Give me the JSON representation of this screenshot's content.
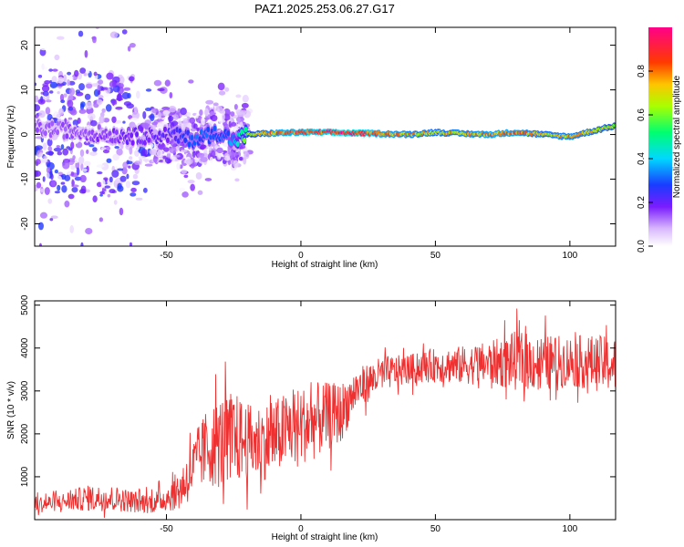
{
  "title": "PAZ1.2025.253.06.27.G17",
  "chart_data": [
    {
      "type": "heatmap",
      "title": "PAZ1.2025.253.06.27.G17",
      "xlabel": "Height of straight line (km)",
      "ylabel": "Frequency (Hz)",
      "xlim": [
        -99,
        117
      ],
      "ylim": [
        -25,
        24
      ],
      "xticks": [
        -50,
        0,
        50,
        100
      ],
      "xtick_labels": [
        "-50",
        "0",
        "50",
        "100"
      ],
      "yticks": [
        -20,
        -10,
        0,
        10,
        20
      ],
      "ytick_labels": [
        "-20",
        "-10",
        "0",
        "10",
        "20"
      ],
      "colorbar": {
        "label": "Normalized spectral amplitude",
        "range": [
          0,
          1
        ],
        "ticks": [
          0.0,
          0.2,
          0.4,
          0.6,
          0.8
        ],
        "tick_labels": [
          "0.0",
          "0.2",
          "0.4",
          "0.6",
          "0.8"
        ],
        "colormap": "rainbow (white→purple→blue→cyan→green→yellow→red→magenta)"
      },
      "ridge": {
        "description": "Narrow band of high amplitude near 0–1 Hz from about -20 km onward; broad noisy scatter below -50 km",
        "height_km": [
          -99,
          -80,
          -60,
          -50,
          -40,
          -30,
          -25,
          -20,
          -10,
          0,
          10,
          20,
          30,
          40,
          50,
          60,
          70,
          80,
          90,
          100,
          110,
          117
        ],
        "frequency_hz": [
          1.5,
          0.5,
          -0.5,
          0.0,
          -1.0,
          0.5,
          -1.5,
          0.0,
          0.3,
          0.5,
          0.5,
          0.3,
          0.2,
          0.0,
          0.5,
          0.2,
          0.0,
          0.5,
          0.0,
          -0.5,
          1.0,
          2.0
        ],
        "amplitude": [
          0.15,
          0.15,
          0.2,
          0.2,
          0.3,
          0.3,
          0.35,
          0.6,
          0.8,
          0.85,
          0.9,
          0.95,
          0.8,
          0.75,
          0.7,
          0.75,
          0.8,
          0.8,
          0.7,
          0.75,
          0.7,
          0.65
        ]
      }
    },
    {
      "type": "line",
      "xlabel": "Height of straight line (km)",
      "ylabel": "SNR (10 * v/v)",
      "xlim": [
        -99,
        117
      ],
      "ylim": [
        0,
        5100
      ],
      "xticks": [
        -50,
        0,
        50,
        100
      ],
      "xtick_labels": [
        "-50",
        "0",
        "50",
        "100"
      ],
      "yticks": [
        1000,
        2000,
        3000,
        4000,
        5000
      ],
      "ytick_labels": [
        "1000",
        "2000",
        "3000",
        "4000",
        "5000"
      ],
      "series": [
        {
          "name": "SNR",
          "color": "#ee3030",
          "x": [
            -99,
            -90,
            -80,
            -70,
            -60,
            -55,
            -50,
            -45,
            -40,
            -35,
            -30,
            -25,
            -20,
            -15,
            -10,
            -5,
            0,
            5,
            10,
            15,
            20,
            25,
            30,
            40,
            50,
            60,
            70,
            80,
            90,
            100,
            110,
            117
          ],
          "mean": [
            350,
            400,
            500,
            500,
            400,
            400,
            500,
            700,
            1200,
            1700,
            1800,
            1900,
            1800,
            1800,
            1900,
            2100,
            2200,
            2300,
            2400,
            2500,
            3000,
            3200,
            3400,
            3500,
            3600,
            3600,
            3650,
            3700,
            3650,
            3700,
            3650,
            3600
          ],
          "spread": [
            200,
            200,
            300,
            300,
            250,
            250,
            300,
            500,
            700,
            900,
            1100,
            1100,
            900,
            900,
            900,
            900,
            900,
            900,
            800,
            700,
            500,
            450,
            400,
            350,
            400,
            450,
            500,
            700,
            650,
            600,
            650,
            650
          ]
        }
      ]
    }
  ]
}
